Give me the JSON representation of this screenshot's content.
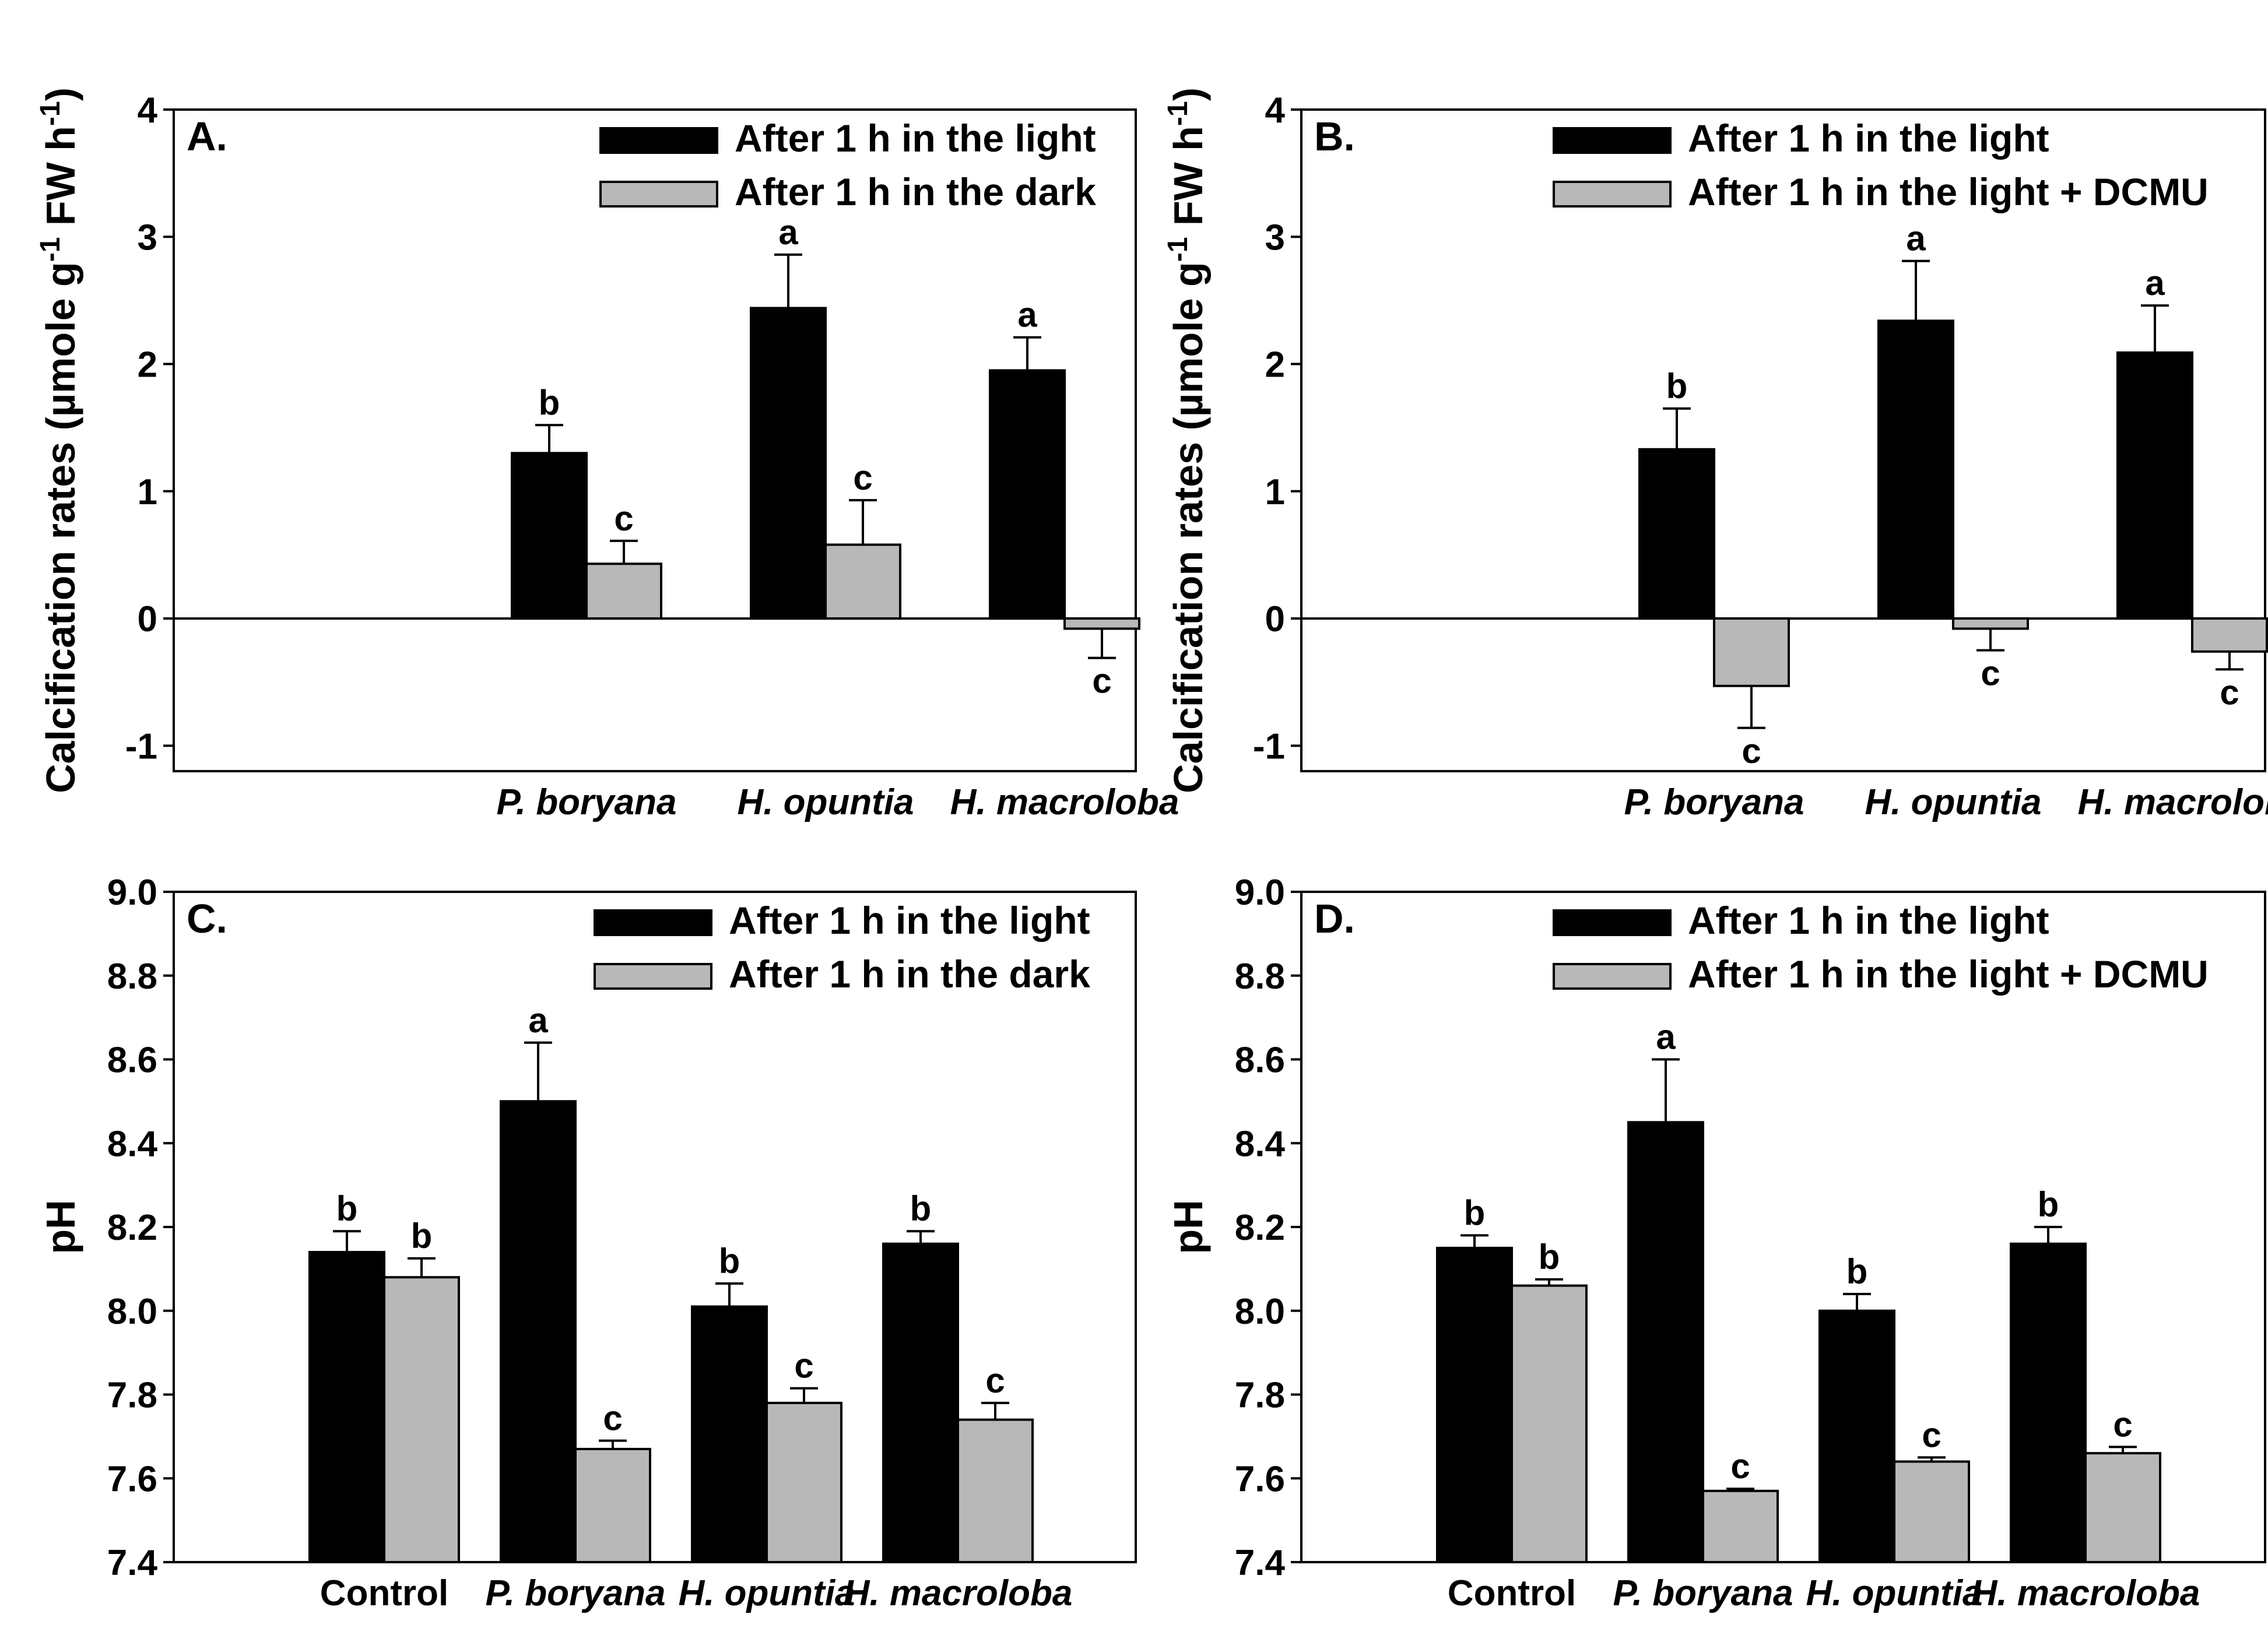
{
  "colors": {
    "light": "#000000",
    "second": "#b8b8b8",
    "axis": "#000000",
    "background": "#ffffff"
  },
  "chart_data": [
    {
      "panel": "A.",
      "type": "bar",
      "ylabel": "Calcification rates (µmole g⁻¹ FW h⁻¹)",
      "ylabel_parts": {
        "main": "Calcification rates (µmole g",
        "sup1": "-1",
        "mid": " FW  h",
        "sup2": "-1",
        "end": ")"
      },
      "ylim": [
        -1.2,
        4
      ],
      "yticks": [
        -1,
        0,
        1,
        2,
        3,
        4
      ],
      "tick_format": "int",
      "zero_line": true,
      "categories": [
        "P. boryana",
        "H. opuntia",
        "H. macroloba"
      ],
      "italic_categories": [
        true,
        true,
        true
      ],
      "legend": [
        "After 1 h in the light",
        "After 1 h in the dark"
      ],
      "series": [
        {
          "name": "After 1 h in the light",
          "values": [
            1.3,
            2.44,
            1.95
          ],
          "errors": [
            0.22,
            0.42,
            0.26
          ],
          "letters": [
            "b",
            "a",
            "a"
          ]
        },
        {
          "name": "After 1 h in the dark",
          "values": [
            0.43,
            0.58,
            -0.08
          ],
          "errors": [
            0.18,
            0.35,
            0.23
          ],
          "letters": [
            "c",
            "c",
            "c"
          ]
        }
      ]
    },
    {
      "panel": "B.",
      "type": "bar",
      "ylabel": "Calcification rates (µmole g⁻¹ FW h⁻¹)",
      "ylabel_parts": {
        "main": "Calcification rates (µmole g",
        "sup1": "-1",
        "mid": " FW  h",
        "sup2": "-1",
        "end": ")"
      },
      "ylim": [
        -1.2,
        4
      ],
      "yticks": [
        -1,
        0,
        1,
        2,
        3,
        4
      ],
      "tick_format": "int",
      "zero_line": true,
      "categories": [
        "P. boryana",
        "H. opuntia",
        "H. macroloba"
      ],
      "italic_categories": [
        true,
        true,
        true
      ],
      "legend": [
        "After 1 h in the light",
        "After 1 h in the light + DCMU"
      ],
      "series": [
        {
          "name": "After 1 h in the light",
          "values": [
            1.33,
            2.34,
            2.09
          ],
          "errors": [
            0.32,
            0.47,
            0.37
          ],
          "letters": [
            "b",
            "a",
            "a"
          ]
        },
        {
          "name": "After 1 h in the light + DCMU",
          "values": [
            -0.53,
            -0.08,
            -0.26
          ],
          "errors": [
            0.33,
            0.17,
            0.14
          ],
          "letters": [
            "c",
            "c",
            "c"
          ]
        }
      ]
    },
    {
      "panel": "C.",
      "type": "bar",
      "ylabel": "pH",
      "ylim": [
        7.4,
        9.0
      ],
      "yticks": [
        7.4,
        7.6,
        7.8,
        8.0,
        8.2,
        8.4,
        8.6,
        8.8,
        9.0
      ],
      "tick_format": "fixed1",
      "zero_line": false,
      "categories": [
        "Control",
        "P. boryana",
        "H. opuntia",
        "H. macroloba"
      ],
      "italic_categories": [
        false,
        true,
        true,
        true
      ],
      "legend": [
        "After 1 h in the light",
        "After 1 h in the dark"
      ],
      "series": [
        {
          "name": "After 1 h in the light",
          "values": [
            8.14,
            8.5,
            8.01,
            8.16
          ],
          "errors": [
            0.05,
            0.14,
            0.055,
            0.03
          ],
          "letters": [
            "b",
            "a",
            "b",
            "b"
          ]
        },
        {
          "name": "After 1 h in the dark",
          "values": [
            8.08,
            7.67,
            7.78,
            7.74
          ],
          "errors": [
            0.045,
            0.02,
            0.035,
            0.04
          ],
          "letters": [
            "b",
            "c",
            "c",
            "c"
          ]
        }
      ]
    },
    {
      "panel": "D.",
      "type": "bar",
      "ylabel": "pH",
      "ylim": [
        7.4,
        9.0
      ],
      "yticks": [
        7.4,
        7.6,
        7.8,
        8.0,
        8.2,
        8.4,
        8.6,
        8.8,
        9.0
      ],
      "tick_format": "fixed1",
      "zero_line": false,
      "categories": [
        "Control",
        "P. boryana",
        "H. opuntia",
        "H. macroloba"
      ],
      "italic_categories": [
        false,
        true,
        true,
        true
      ],
      "legend": [
        "After 1 h in the light",
        "After 1 h in the light + DCMU"
      ],
      "series": [
        {
          "name": "After 1 h in the light",
          "values": [
            8.15,
            8.45,
            8.0,
            8.16
          ],
          "errors": [
            0.03,
            0.15,
            0.04,
            0.04
          ],
          "letters": [
            "b",
            "a",
            "b",
            "b"
          ]
        },
        {
          "name": "After 1 h in the light + DCMU",
          "values": [
            8.06,
            7.57,
            7.64,
            7.66
          ],
          "errors": [
            0.015,
            0.005,
            0.01,
            0.015
          ],
          "letters": [
            "b",
            "c",
            "c",
            "c"
          ]
        }
      ]
    }
  ]
}
